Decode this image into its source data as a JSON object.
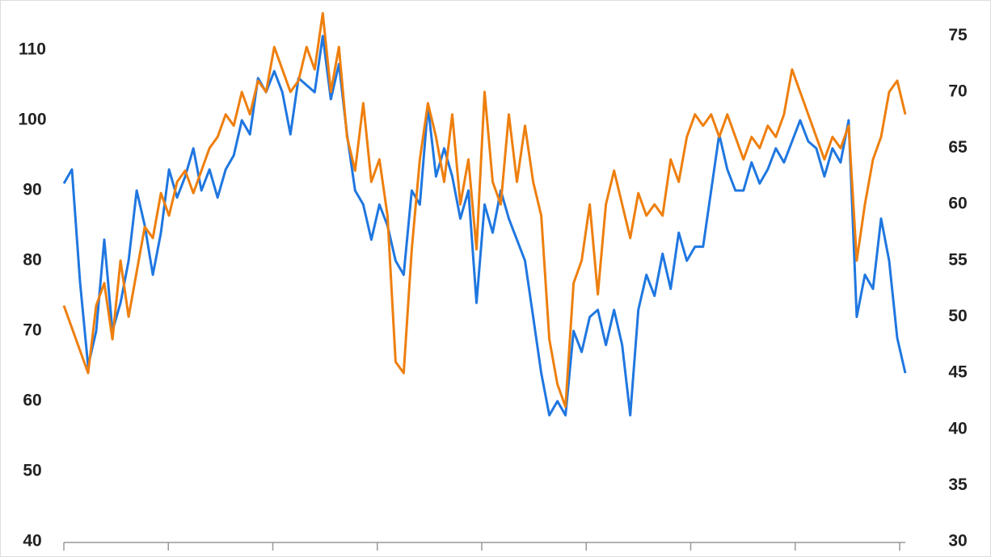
{
  "chart_data": {
    "type": "line",
    "ylim": [
      40,
      115.4
    ],
    "yticks": [
      40,
      50,
      60,
      70,
      80,
      90,
      100,
      110
    ],
    "y2lim": [
      30,
      77.1
    ],
    "y2ticks": [
      30,
      35,
      40,
      45,
      50,
      55,
      60,
      65,
      70,
      75
    ],
    "series": [
      {
        "color": "#1f77e0",
        "values": [
          91,
          93,
          77,
          65,
          70,
          83,
          70,
          74,
          80,
          90,
          85,
          78,
          84,
          93,
          89,
          92,
          96,
          90,
          93,
          89,
          93,
          95,
          100,
          98,
          106,
          104,
          107,
          104,
          98,
          106,
          105,
          104,
          112,
          103,
          108,
          98,
          90,
          88,
          83,
          88,
          85,
          80,
          78,
          90,
          88,
          102,
          92,
          96,
          92,
          86,
          90,
          74,
          88,
          84,
          90,
          86,
          83,
          80,
          72,
          64,
          58,
          60,
          58,
          70,
          67,
          72,
          73,
          68,
          73,
          68,
          58,
          73,
          78,
          75,
          81,
          76,
          84,
          80,
          82,
          82,
          90,
          98,
          93,
          90,
          90,
          94,
          91,
          93,
          96,
          94,
          97,
          100,
          97,
          96,
          92,
          96,
          94,
          100,
          72,
          78,
          76,
          86,
          80,
          69,
          64
        ]
      },
      {
        "color": "#ee7f0e",
        "axis": "y2",
        "values": [
          51,
          49,
          47,
          45,
          51,
          53,
          48,
          55,
          50,
          54,
          58,
          57,
          61,
          59,
          62,
          63,
          61,
          63,
          65,
          66,
          68,
          67,
          70,
          68,
          71,
          70,
          74,
          72,
          70,
          71,
          74,
          72,
          77,
          70,
          74,
          66,
          63,
          69,
          62,
          64,
          59,
          46,
          45,
          56,
          64,
          69,
          66,
          62,
          68,
          60,
          64,
          56,
          70,
          62,
          60,
          68,
          62,
          67,
          62,
          59,
          48,
          44,
          42,
          53,
          55,
          60,
          52,
          60,
          63,
          60,
          57,
          61,
          59,
          60,
          59,
          64,
          62,
          66,
          68,
          67,
          68,
          66,
          68,
          66,
          64,
          66,
          65,
          67,
          66,
          68,
          72,
          70,
          68,
          66,
          64,
          66,
          65,
          67,
          55,
          60,
          64,
          66,
          70,
          71,
          68
        ]
      }
    ]
  }
}
